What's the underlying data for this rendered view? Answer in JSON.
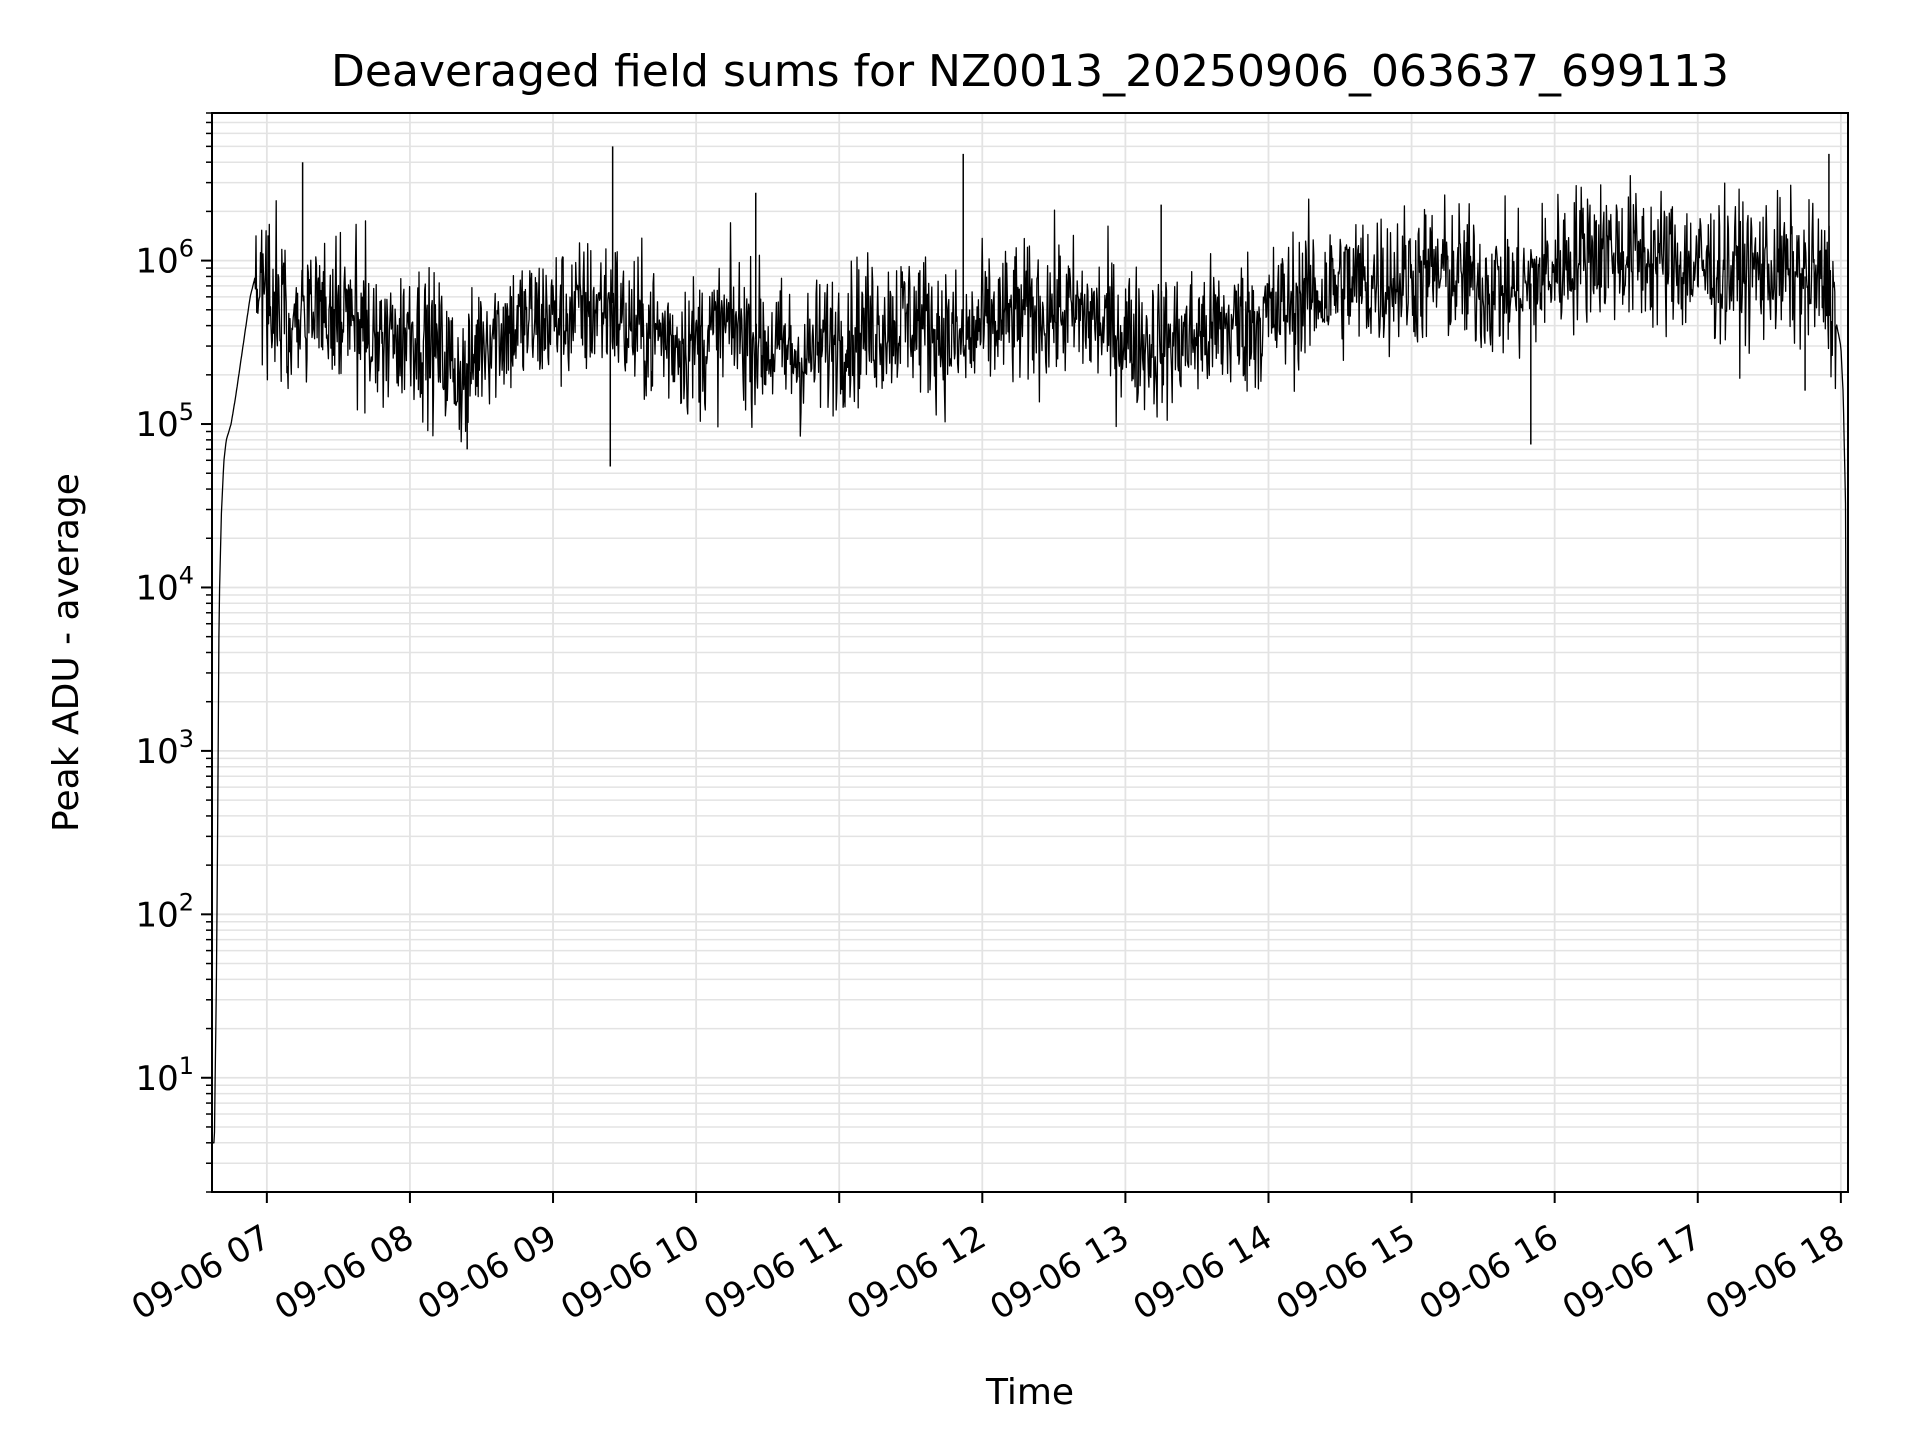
{
  "chart_data": {
    "type": "line",
    "title": "Deaveraged field sums for NZ0013_20250906_063637_699113",
    "xlabel": "Time",
    "ylabel": "Peak ADU - average",
    "yscale": "log",
    "ylim": [
      2,
      8000000
    ],
    "xlim": [
      "2025-09-06 06:37",
      "2025-09-06 18:03"
    ],
    "grid": true,
    "line_color": "#000000",
    "grid_color": "#e3e3e3",
    "x_ticks": [
      {
        "value": "2025-09-06 07:00",
        "label": "09-06 07"
      },
      {
        "value": "2025-09-06 08:00",
        "label": "09-06 08"
      },
      {
        "value": "2025-09-06 09:00",
        "label": "09-06 09"
      },
      {
        "value": "2025-09-06 10:00",
        "label": "09-06 10"
      },
      {
        "value": "2025-09-06 11:00",
        "label": "09-06 11"
      },
      {
        "value": "2025-09-06 12:00",
        "label": "09-06 12"
      },
      {
        "value": "2025-09-06 13:00",
        "label": "09-06 13"
      },
      {
        "value": "2025-09-06 14:00",
        "label": "09-06 14"
      },
      {
        "value": "2025-09-06 15:00",
        "label": "09-06 15"
      },
      {
        "value": "2025-09-06 16:00",
        "label": "09-06 16"
      },
      {
        "value": "2025-09-06 17:00",
        "label": "09-06 17"
      },
      {
        "value": "2025-09-06 18:00",
        "label": "09-06 18"
      }
    ],
    "y_ticks": [
      {
        "value": 10,
        "base": "10",
        "exp": "1"
      },
      {
        "value": 100,
        "base": "10",
        "exp": "2"
      },
      {
        "value": 1000,
        "base": "10",
        "exp": "3"
      },
      {
        "value": 10000,
        "base": "10",
        "exp": "4"
      },
      {
        "value": 100000,
        "base": "10",
        "exp": "5"
      },
      {
        "value": 1000000,
        "base": "10",
        "exp": "6"
      }
    ],
    "series": [
      {
        "x": [
          "2025-09-06 06:37",
          "2025-09-06 06:38",
          "2025-09-06 06:39",
          "2025-09-06 06:40",
          "2025-09-06 06:41",
          "2025-09-06 06:42",
          "2025-09-06 06:43",
          "2025-09-06 06:45",
          "2025-09-06 06:47",
          "2025-09-06 06:50",
          "2025-09-06 06:53",
          "2025-09-06 06:56",
          "2025-09-06 07:00",
          "2025-09-06 07:06",
          "2025-09-06 07:10",
          "2025-09-06 07:15",
          "2025-09-06 07:20",
          "2025-09-06 07:30",
          "2025-09-06 07:40",
          "2025-09-06 07:50",
          "2025-09-06 08:00",
          "2025-09-06 08:15",
          "2025-09-06 08:24",
          "2025-09-06 08:30",
          "2025-09-06 08:45",
          "2025-09-06 09:00",
          "2025-09-06 09:15",
          "2025-09-06 09:25",
          "2025-09-06 09:30",
          "2025-09-06 09:45",
          "2025-09-06 10:00",
          "2025-09-06 10:15",
          "2025-09-06 10:30",
          "2025-09-06 10:45",
          "2025-09-06 11:00",
          "2025-09-06 11:15",
          "2025-09-06 11:30",
          "2025-09-06 11:45",
          "2025-09-06 11:52",
          "2025-09-06 12:00",
          "2025-09-06 12:15",
          "2025-09-06 12:30",
          "2025-09-06 12:45",
          "2025-09-06 13:00",
          "2025-09-06 13:15",
          "2025-09-06 13:30",
          "2025-09-06 13:45",
          "2025-09-06 14:00",
          "2025-09-06 14:15",
          "2025-09-06 14:30",
          "2025-09-06 14:45",
          "2025-09-06 15:00",
          "2025-09-06 15:15",
          "2025-09-06 15:30",
          "2025-09-06 15:45",
          "2025-09-06 16:00",
          "2025-09-06 16:15",
          "2025-09-06 16:30",
          "2025-09-06 16:45",
          "2025-09-06 17:00",
          "2025-09-06 17:15",
          "2025-09-06 17:30",
          "2025-09-06 17:45",
          "2025-09-06 17:55",
          "2025-09-06 18:00",
          "2025-09-06 18:01",
          "2025-09-06 18:02",
          "2025-09-06 18:03"
        ],
        "y": [
          4,
          4,
          60,
          8000,
          30000,
          60000,
          80000,
          100000,
          150000,
          300000,
          600000,
          900000,
          700000,
          500000,
          400000,
          600000,
          500000,
          450000,
          400000,
          300000,
          400000,
          250000,
          180000,
          350000,
          400000,
          450000,
          500000,
          550000,
          400000,
          350000,
          300000,
          400000,
          300000,
          250000,
          350000,
          400000,
          450000,
          350000,
          300000,
          400000,
          450000,
          500000,
          450000,
          350000,
          300000,
          350000,
          400000,
          450000,
          600000,
          700000,
          750000,
          800000,
          850000,
          700000,
          650000,
          900000,
          1200000,
          1100000,
          1000000,
          900000,
          850000,
          900000,
          800000,
          700000,
          300000,
          150000,
          30000,
          4
        ]
      }
    ],
    "spikes": [
      {
        "x": "2025-09-06 07:15",
        "y": 4000000
      },
      {
        "x": "2025-09-06 08:24",
        "y": 70000
      },
      {
        "x": "2025-09-06 09:25",
        "y": 5000000
      },
      {
        "x": "2025-09-06 09:24",
        "y": 55000
      },
      {
        "x": "2025-09-06 10:25",
        "y": 2600000
      },
      {
        "x": "2025-09-06 11:52",
        "y": 4500000
      },
      {
        "x": "2025-09-06 13:15",
        "y": 2200000
      },
      {
        "x": "2025-09-06 15:50",
        "y": 75000
      },
      {
        "x": "2025-09-06 17:55",
        "y": 4500000
      },
      {
        "x": "2025-09-06 17:45",
        "y": 160000
      }
    ]
  }
}
